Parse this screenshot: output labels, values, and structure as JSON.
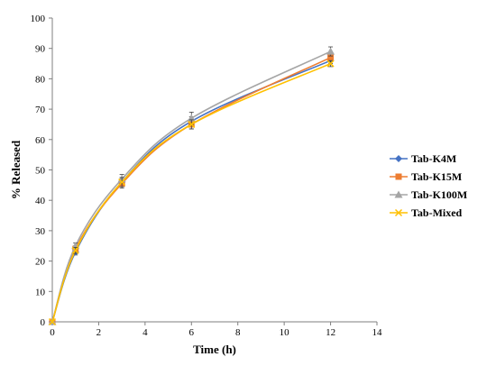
{
  "chart_data": {
    "type": "line",
    "title": "",
    "xlabel": "Time (h)",
    "ylabel": "% Released",
    "xlim": [
      0,
      14
    ],
    "ylim": [
      0,
      100
    ],
    "xticks": [
      "0",
      "2",
      "4",
      "6",
      "8",
      "10",
      "12",
      "14"
    ],
    "yticks": [
      "0",
      "10",
      "20",
      "30",
      "40",
      "50",
      "60",
      "70",
      "80",
      "90",
      "100"
    ],
    "grid": false,
    "legend_position": "right",
    "x": [
      0,
      1,
      3,
      6,
      12
    ],
    "series": [
      {
        "name": "Tab-K4M",
        "values": [
          0,
          23,
          46,
          66,
          86
        ],
        "errors": [
          0,
          1,
          1.5,
          1.5,
          1
        ],
        "color": "#4472C4",
        "marker": "diamond"
      },
      {
        "name": "Tab-K15M",
        "values": [
          0,
          24,
          45.5,
          65,
          87
        ],
        "errors": [
          0,
          1,
          1.5,
          1.5,
          1.5
        ],
        "color": "#ED7D31",
        "marker": "square"
      },
      {
        "name": "Tab-K100M",
        "values": [
          0,
          25,
          47,
          67,
          89
        ],
        "errors": [
          0,
          1,
          1.5,
          2,
          1.5
        ],
        "color": "#A5A5A5",
        "marker": "triangle"
      },
      {
        "name": "Tab-Mixed",
        "values": [
          0,
          23.5,
          46,
          65,
          85
        ],
        "errors": [
          0,
          1,
          1.5,
          1.5,
          1
        ],
        "color": "#FFC000",
        "marker": "x"
      }
    ]
  }
}
